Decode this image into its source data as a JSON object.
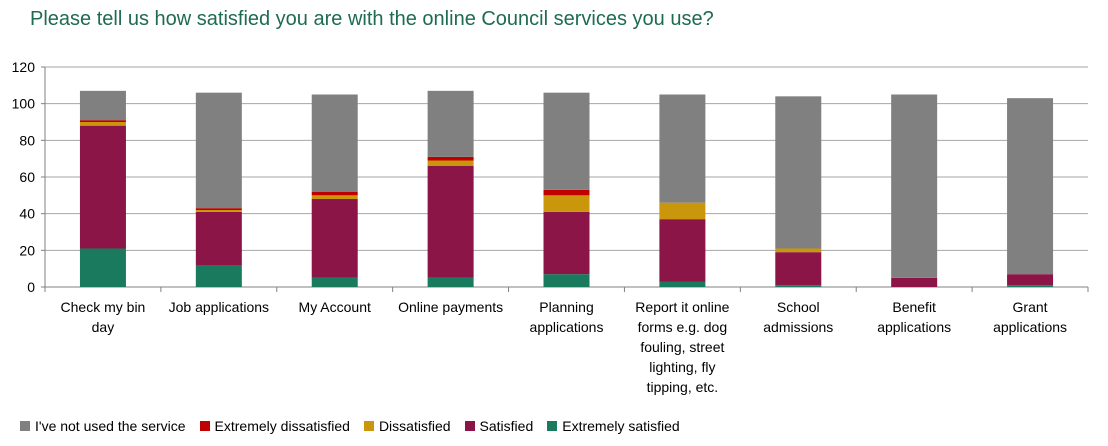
{
  "title": "Please tell us how satisfied you are with the online Council services you use?",
  "chart_data": {
    "type": "bar",
    "stacked": true,
    "categories": [
      [
        "Check my bin",
        "day"
      ],
      [
        "Job applications"
      ],
      [
        "My Account"
      ],
      [
        "Online payments"
      ],
      [
        "Planning",
        "applications"
      ],
      [
        "Report it online",
        "forms e.g. dog",
        "fouling, street",
        "lighting, fly",
        "tipping, etc."
      ],
      [
        "School",
        "admissions"
      ],
      [
        "Benefit",
        "applications"
      ],
      [
        "Grant",
        "applications"
      ]
    ],
    "series": [
      {
        "name": "Extremely satisfied",
        "color": "#1a7a5e",
        "values": [
          21,
          12,
          5,
          5,
          7,
          3,
          1,
          0,
          1
        ]
      },
      {
        "name": "Satisfied",
        "color": "#8c1548",
        "values": [
          67,
          29,
          43,
          61,
          34,
          34,
          18,
          5,
          6
        ]
      },
      {
        "name": "Dissatisfied",
        "color": "#c9960c",
        "values": [
          2,
          1,
          2,
          3,
          9,
          9,
          2,
          0,
          0
        ]
      },
      {
        "name": "Extremely dissatisfied",
        "color": "#c00000",
        "values": [
          1,
          1,
          2,
          2,
          3,
          0,
          0,
          0,
          0
        ]
      },
      {
        "name": "I've not used the service",
        "color": "#808080",
        "values": [
          16,
          63,
          53,
          36,
          53,
          59,
          83,
          100,
          96
        ]
      }
    ],
    "legend_order": [
      "I've not used the service",
      "Extremely dissatisfied",
      "Dissatisfied",
      "Satisfied",
      "Extremely satisfied"
    ],
    "ylim": [
      0,
      120
    ],
    "yticks": [
      0,
      20,
      40,
      60,
      80,
      100,
      120
    ],
    "grid": true,
    "legend_position": "bottom-left"
  }
}
